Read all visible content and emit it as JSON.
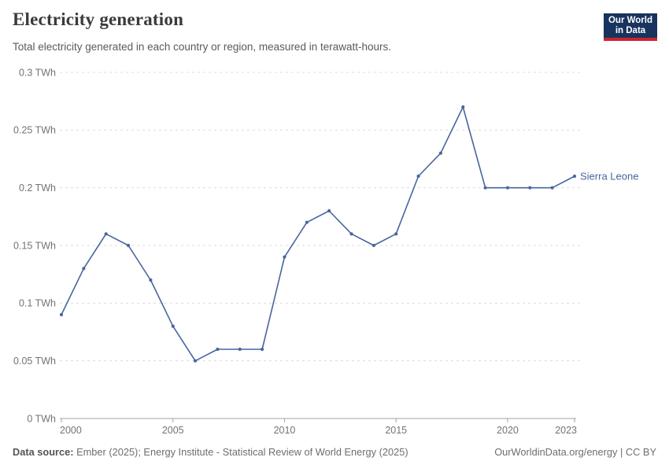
{
  "header": {
    "title": "Electricity generation",
    "subtitle": "Total electricity generated in each country or region, measured in terawatt-hours.",
    "logo": {
      "line1": "Our World",
      "line2": "in Data"
    }
  },
  "chart_data": {
    "type": "line",
    "title": "Electricity generation",
    "unit": "TWh",
    "x": [
      2000,
      2001,
      2002,
      2003,
      2004,
      2005,
      2006,
      2007,
      2008,
      2009,
      2010,
      2011,
      2012,
      2013,
      2014,
      2015,
      2016,
      2017,
      2018,
      2019,
      2020,
      2021,
      2022,
      2023
    ],
    "series": [
      {
        "name": "Sierra Leone",
        "values": [
          0.09,
          0.13,
          0.16,
          0.15,
          0.12,
          0.08,
          0.05,
          0.06,
          0.06,
          0.06,
          0.14,
          0.17,
          0.18,
          0.16,
          0.15,
          0.16,
          0.21,
          0.23,
          0.27,
          0.2,
          0.2,
          0.2,
          0.2,
          0.21
        ]
      }
    ],
    "ylim": [
      0,
      0.3
    ],
    "yticks": [
      0,
      0.05,
      0.1,
      0.15,
      0.2,
      0.25,
      0.3
    ],
    "ytick_labels": [
      "0 TWh",
      "0.05 TWh",
      "0.1 TWh",
      "0.15 TWh",
      "0.2 TWh",
      "0.25 TWh",
      "0.3 TWh"
    ],
    "xticks": [
      2000,
      2005,
      2010,
      2015,
      2020,
      2023
    ],
    "grid": "horizontal-dashed",
    "legend_position": "end-of-line-label"
  },
  "footer": {
    "datasource_label": "Data source:",
    "datasource_value": " Ember (2025); Energy Institute - Statistical Review of World Energy (2025)",
    "credit": "OurWorldinData.org/energy | CC BY"
  },
  "colors": {
    "line": "#48659e",
    "logo_bg": "#18335e",
    "logo_stripe": "#cd2430",
    "grid": "#dcdcdc",
    "axis": "#a3a3a3",
    "tick_label": "#737373",
    "title": "#3a3a3a",
    "subtitle": "#5a5a5a"
  }
}
